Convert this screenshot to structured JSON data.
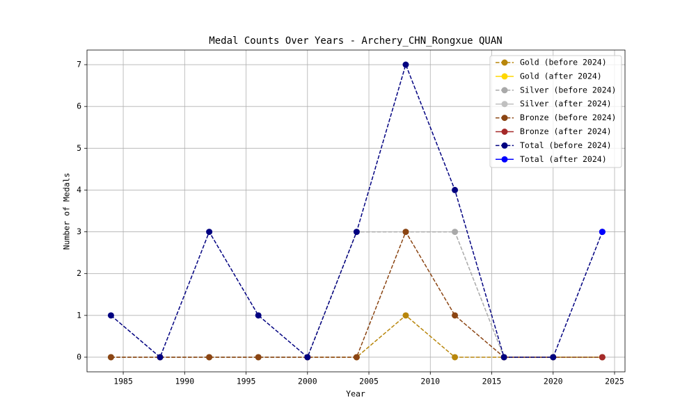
{
  "chart_data": {
    "type": "line",
    "title": "Medal Counts Over Years - Archery_CHN_Rongxue QUAN",
    "x_label": "Year",
    "y_label": "Number of Medals",
    "x": [
      1984,
      1988,
      1992,
      1996,
      2000,
      2004,
      2008,
      2012,
      2016,
      2020,
      2024
    ],
    "series": [
      {
        "name": "Gold (before 2024)",
        "color": "#b8860b",
        "linestyle": "dashed",
        "values": [
          0,
          0,
          0,
          0,
          0,
          0,
          1,
          0,
          0,
          0,
          0
        ]
      },
      {
        "name": "Gold (after 2024)",
        "color": "#ffd700",
        "linestyle": "solid",
        "values": [
          null,
          null,
          null,
          null,
          null,
          null,
          null,
          null,
          null,
          null,
          0
        ]
      },
      {
        "name": "Silver (before 2024)",
        "color": "#a9a9a9",
        "linestyle": "dashed",
        "values": [
          0,
          0,
          0,
          0,
          0,
          3,
          3,
          3,
          0,
          0,
          0
        ]
      },
      {
        "name": "Silver (after 2024)",
        "color": "#c0c0c0",
        "linestyle": "solid",
        "values": [
          null,
          null,
          null,
          null,
          null,
          null,
          null,
          null,
          null,
          null,
          0
        ]
      },
      {
        "name": "Bronze (before 2024)",
        "color": "#8b4513",
        "linestyle": "dashed",
        "values": [
          0,
          0,
          0,
          0,
          0,
          0,
          3,
          1,
          0,
          0,
          0
        ]
      },
      {
        "name": "Bronze (after 2024)",
        "color": "#a52a2a",
        "linestyle": "solid",
        "values": [
          null,
          null,
          null,
          null,
          null,
          null,
          null,
          null,
          null,
          null,
          0
        ]
      },
      {
        "name": "Total (before 2024)",
        "color": "#000080",
        "linestyle": "dashed",
        "values": [
          1,
          0,
          3,
          1,
          0,
          3,
          7,
          4,
          0,
          0,
          3
        ]
      },
      {
        "name": "Total (after 2024)",
        "color": "#0000ff",
        "linestyle": "solid",
        "values": [
          null,
          null,
          null,
          null,
          null,
          null,
          null,
          null,
          null,
          null,
          3
        ]
      }
    ],
    "xlim": [
      1982.05,
      2025.85
    ],
    "ylim": [
      -0.35,
      7.35
    ],
    "xticks": [
      1985,
      1990,
      1995,
      2000,
      2005,
      2010,
      2015,
      2020,
      2025
    ],
    "yticks": [
      0,
      1,
      2,
      3,
      4,
      5,
      6,
      7
    ],
    "grid": true,
    "legend": "upper right"
  }
}
